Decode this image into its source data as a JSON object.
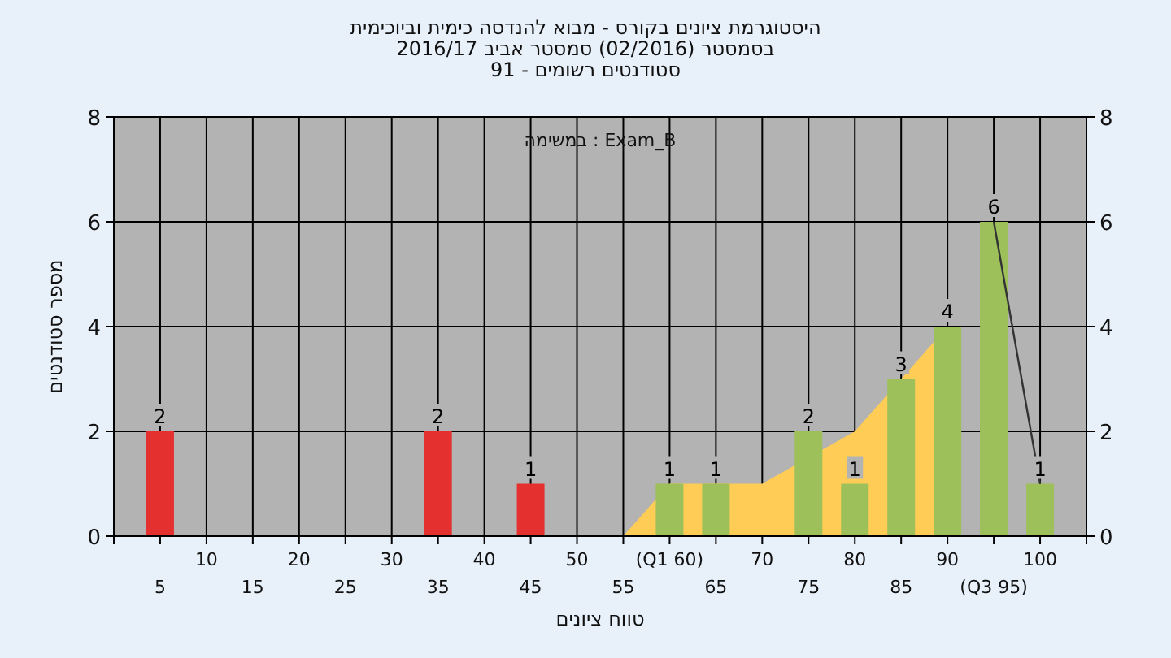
{
  "chart_data": {
    "type": "bar",
    "title": "היסטוגרמת ציונים בקורס - מבוא להנדסה כימית וביוכימית",
    "subtitle": [
      "בסמסטר (02/2016) סמסטר אביב 2016/17",
      "סטודנטים רשומים - 91"
    ],
    "xlabel": "טווח ציונים",
    "ylabel": "מספר סטודנטים",
    "annotations": [
      "במשימה : Exam_B"
    ],
    "categories": [
      "5",
      "10",
      "15",
      "20",
      "25",
      "30",
      "35",
      "40",
      "45",
      "50",
      "55",
      "(Q1 60)",
      "65",
      "70",
      "75",
      "80",
      "85",
      "90",
      "(Q3 95)",
      "100"
    ],
    "series": [
      {
        "type": "area",
        "color": "#ffcc55",
        "values": [
          null,
          null,
          null,
          null,
          null,
          null,
          null,
          null,
          null,
          null,
          0,
          1,
          1,
          1,
          null,
          2,
          3,
          4,
          null,
          null
        ]
      },
      {
        "colors": [
          "#e53030",
          "#e53030",
          "#e53030",
          "#e53030",
          "#e53030",
          "#e53030",
          "#e53030",
          "#e53030",
          "#e53030",
          "#e53030",
          "#e53030",
          "#9dc05a",
          "#9dc05a",
          "#9dc05a",
          "#9dc05a",
          "#9dc05a",
          "#9dc05a",
          "#9dc05a",
          "#9dc05a",
          "#9dc05a"
        ],
        "values": [
          2,
          0,
          0,
          0,
          0,
          0,
          2,
          0,
          1,
          0,
          0,
          1,
          1,
          0,
          2,
          1,
          3,
          4,
          6,
          1
        ],
        "value_labels": [
          "2",
          null,
          null,
          null,
          null,
          null,
          "2",
          null,
          "1",
          null,
          null,
          "1",
          "1",
          null,
          "2",
          "1",
          "3",
          "4",
          "6",
          "1"
        ]
      },
      {
        "type": "line",
        "color": "#333333",
        "values": [
          null,
          null,
          null,
          null,
          null,
          null,
          null,
          null,
          null,
          null,
          null,
          null,
          null,
          null,
          null,
          null,
          null,
          null,
          6,
          1
        ]
      }
    ],
    "ylim": [
      0,
      8
    ],
    "yticks": [
      0,
      2,
      4,
      6,
      8
    ],
    "y2lim": [
      0,
      8
    ],
    "y2ticks": [
      0,
      2,
      4,
      6,
      8
    ],
    "grid": true
  }
}
